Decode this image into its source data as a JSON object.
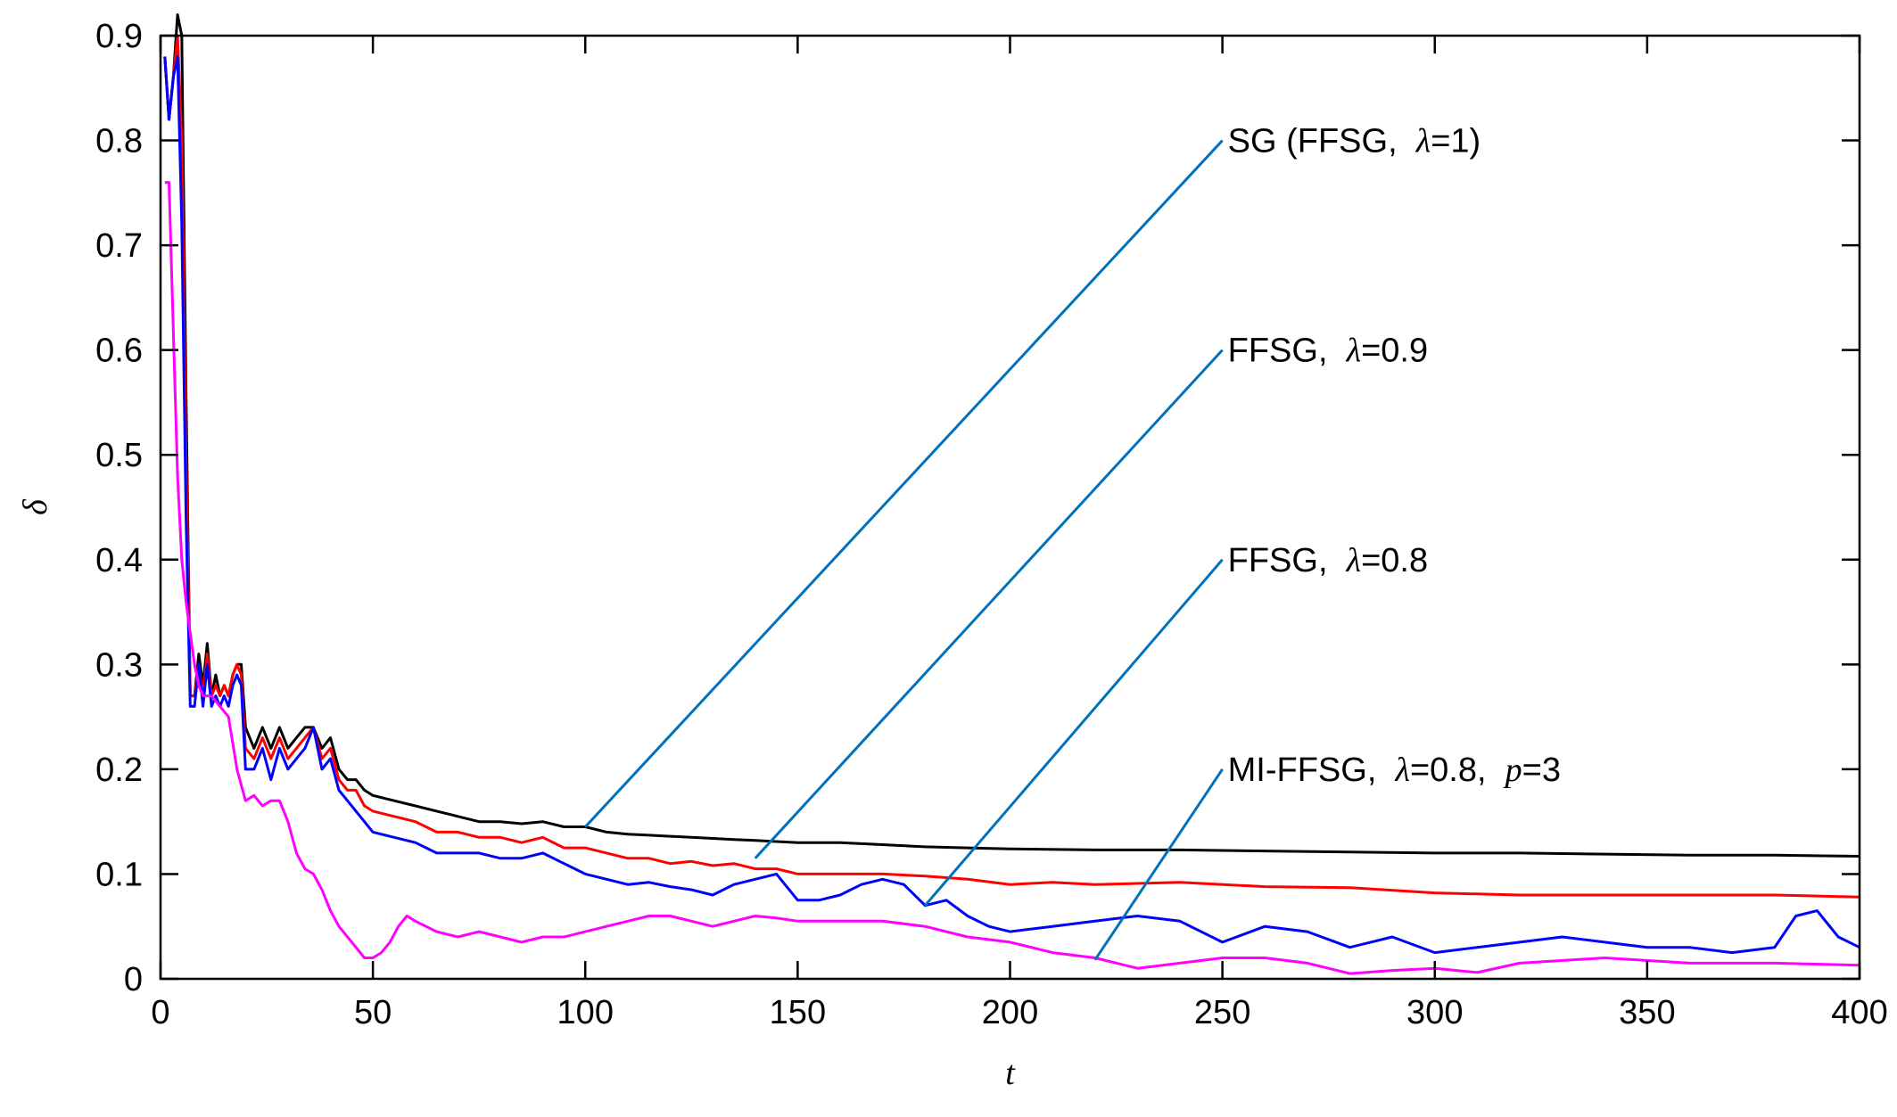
{
  "chart_data": {
    "type": "line",
    "title": "",
    "xlabel": "t",
    "ylabel": "δ",
    "xlim": [
      0,
      400
    ],
    "ylim": [
      0,
      0.9
    ],
    "xticks": [
      0,
      50,
      100,
      150,
      200,
      250,
      300,
      350,
      400
    ],
    "yticks": [
      0,
      0.1,
      0.2,
      0.3,
      0.4,
      0.5,
      0.6,
      0.7,
      0.8,
      0.9
    ],
    "xtick_labels": [
      "0",
      "50",
      "100",
      "150",
      "200",
      "250",
      "300",
      "350",
      "400"
    ],
    "ytick_labels": [
      "0",
      "0.1",
      "0.2",
      "0.3",
      "0.4",
      "0.5",
      "0.6",
      "0.7",
      "0.8",
      "0.9"
    ],
    "grid": false,
    "series": [
      {
        "name": "SG (FFSG, λ=1)",
        "color": "#000000",
        "x": [
          1,
          2,
          3,
          4,
          5,
          6,
          7,
          8,
          9,
          10,
          11,
          12,
          13,
          14,
          15,
          16,
          17,
          18,
          19,
          20,
          22,
          24,
          26,
          28,
          30,
          32,
          34,
          36,
          38,
          40,
          42,
          44,
          46,
          48,
          50,
          55,
          60,
          65,
          70,
          75,
          80,
          85,
          90,
          95,
          100,
          105,
          110,
          115,
          120,
          125,
          130,
          135,
          140,
          145,
          150,
          160,
          170,
          180,
          190,
          200,
          220,
          240,
          260,
          280,
          300,
          320,
          340,
          360,
          380,
          400
        ],
        "y": [
          0.88,
          0.82,
          0.86,
          0.92,
          0.9,
          0.56,
          0.27,
          0.27,
          0.31,
          0.28,
          0.32,
          0.27,
          0.29,
          0.27,
          0.28,
          0.27,
          0.29,
          0.3,
          0.3,
          0.24,
          0.22,
          0.24,
          0.22,
          0.24,
          0.22,
          0.23,
          0.24,
          0.24,
          0.22,
          0.23,
          0.2,
          0.19,
          0.19,
          0.18,
          0.175,
          0.17,
          0.165,
          0.16,
          0.155,
          0.15,
          0.15,
          0.148,
          0.15,
          0.145,
          0.145,
          0.14,
          0.138,
          0.137,
          0.136,
          0.135,
          0.134,
          0.133,
          0.132,
          0.131,
          0.13,
          0.13,
          0.128,
          0.126,
          0.125,
          0.124,
          0.123,
          0.123,
          0.122,
          0.121,
          0.12,
          0.12,
          0.119,
          0.118,
          0.118,
          0.117
        ]
      },
      {
        "name": "FFSG, λ=0.9",
        "color": "#ff0000",
        "x": [
          1,
          2,
          3,
          4,
          5,
          6,
          7,
          8,
          9,
          10,
          11,
          12,
          13,
          14,
          15,
          16,
          17,
          18,
          19,
          20,
          22,
          24,
          26,
          28,
          30,
          32,
          34,
          36,
          38,
          40,
          42,
          44,
          46,
          48,
          50,
          55,
          60,
          65,
          70,
          75,
          80,
          85,
          90,
          95,
          100,
          105,
          110,
          115,
          120,
          125,
          130,
          135,
          140,
          145,
          150,
          160,
          170,
          180,
          190,
          200,
          210,
          220,
          240,
          260,
          280,
          300,
          320,
          340,
          360,
          380,
          400
        ],
        "y": [
          0.88,
          0.82,
          0.86,
          0.9,
          0.8,
          0.5,
          0.27,
          0.27,
          0.3,
          0.27,
          0.31,
          0.27,
          0.28,
          0.27,
          0.28,
          0.27,
          0.29,
          0.3,
          0.29,
          0.22,
          0.21,
          0.23,
          0.21,
          0.23,
          0.21,
          0.22,
          0.23,
          0.24,
          0.21,
          0.22,
          0.19,
          0.18,
          0.18,
          0.165,
          0.16,
          0.155,
          0.15,
          0.14,
          0.14,
          0.135,
          0.135,
          0.13,
          0.135,
          0.125,
          0.125,
          0.12,
          0.115,
          0.115,
          0.11,
          0.112,
          0.108,
          0.11,
          0.105,
          0.105,
          0.1,
          0.1,
          0.1,
          0.098,
          0.095,
          0.09,
          0.092,
          0.09,
          0.092,
          0.088,
          0.087,
          0.082,
          0.08,
          0.08,
          0.08,
          0.08,
          0.078
        ]
      },
      {
        "name": "FFSG, λ=0.8",
        "color": "#0000ff",
        "x": [
          1,
          2,
          3,
          4,
          5,
          6,
          7,
          8,
          9,
          10,
          11,
          12,
          13,
          14,
          15,
          16,
          17,
          18,
          19,
          20,
          22,
          24,
          26,
          28,
          30,
          32,
          34,
          36,
          38,
          40,
          42,
          44,
          46,
          48,
          50,
          55,
          60,
          65,
          70,
          75,
          80,
          85,
          90,
          95,
          100,
          105,
          110,
          115,
          120,
          125,
          130,
          135,
          140,
          145,
          150,
          155,
          160,
          165,
          170,
          175,
          180,
          185,
          190,
          195,
          200,
          210,
          220,
          230,
          240,
          250,
          260,
          270,
          280,
          290,
          300,
          310,
          320,
          330,
          340,
          350,
          360,
          370,
          380,
          385,
          390,
          395,
          400
        ],
        "y": [
          0.88,
          0.82,
          0.86,
          0.88,
          0.72,
          0.44,
          0.26,
          0.26,
          0.3,
          0.26,
          0.3,
          0.26,
          0.27,
          0.26,
          0.27,
          0.26,
          0.28,
          0.29,
          0.28,
          0.2,
          0.2,
          0.22,
          0.19,
          0.22,
          0.2,
          0.21,
          0.22,
          0.24,
          0.2,
          0.21,
          0.18,
          0.17,
          0.16,
          0.15,
          0.14,
          0.135,
          0.13,
          0.12,
          0.12,
          0.12,
          0.115,
          0.115,
          0.12,
          0.11,
          0.1,
          0.095,
          0.09,
          0.092,
          0.088,
          0.085,
          0.08,
          0.09,
          0.095,
          0.1,
          0.075,
          0.075,
          0.08,
          0.09,
          0.095,
          0.09,
          0.07,
          0.075,
          0.06,
          0.05,
          0.045,
          0.05,
          0.055,
          0.06,
          0.055,
          0.035,
          0.05,
          0.045,
          0.03,
          0.04,
          0.025,
          0.03,
          0.035,
          0.04,
          0.035,
          0.03,
          0.03,
          0.025,
          0.03,
          0.06,
          0.065,
          0.04,
          0.03
        ]
      },
      {
        "name": "MI-FFSG, λ=0.8, p=3",
        "color": "#ff00ff",
        "x": [
          1,
          2,
          3,
          4,
          5,
          6,
          7,
          8,
          9,
          10,
          12,
          14,
          16,
          18,
          20,
          22,
          24,
          26,
          28,
          30,
          32,
          34,
          36,
          38,
          40,
          42,
          44,
          46,
          48,
          50,
          52,
          54,
          56,
          58,
          60,
          65,
          70,
          75,
          80,
          85,
          90,
          95,
          100,
          105,
          110,
          115,
          120,
          125,
          130,
          135,
          140,
          145,
          150,
          160,
          170,
          180,
          190,
          200,
          210,
          220,
          230,
          240,
          250,
          260,
          270,
          280,
          290,
          300,
          310,
          320,
          340,
          360,
          380,
          400
        ],
        "y": [
          0.76,
          0.76,
          0.62,
          0.48,
          0.4,
          0.36,
          0.33,
          0.3,
          0.28,
          0.27,
          0.27,
          0.26,
          0.25,
          0.2,
          0.17,
          0.175,
          0.165,
          0.17,
          0.17,
          0.15,
          0.12,
          0.105,
          0.1,
          0.085,
          0.065,
          0.05,
          0.04,
          0.03,
          0.02,
          0.02,
          0.025,
          0.035,
          0.05,
          0.06,
          0.055,
          0.045,
          0.04,
          0.045,
          0.04,
          0.035,
          0.04,
          0.04,
          0.045,
          0.05,
          0.055,
          0.06,
          0.06,
          0.055,
          0.05,
          0.055,
          0.06,
          0.058,
          0.055,
          0.055,
          0.055,
          0.05,
          0.04,
          0.035,
          0.025,
          0.02,
          0.01,
          0.015,
          0.02,
          0.02,
          0.015,
          0.005,
          0.008,
          0.01,
          0.006,
          0.015,
          0.02,
          0.015,
          0.015,
          0.013
        ]
      }
    ],
    "annotations": [
      {
        "prefix": "SG (FFSG,  ",
        "greek": "λ",
        "suffix": "=1)",
        "p_var": "",
        "p_val": "",
        "text_x": 250,
        "text_y": 0.8,
        "point_x": 100,
        "point_y": 0.145,
        "color": "#0072bd"
      },
      {
        "prefix": "FFSG,  ",
        "greek": "λ",
        "suffix": "=0.9",
        "p_var": "",
        "p_val": "",
        "text_x": 250,
        "text_y": 0.6,
        "point_x": 140,
        "point_y": 0.115,
        "color": "#0072bd"
      },
      {
        "prefix": "FFSG,  ",
        "greek": "λ",
        "suffix": "=0.8",
        "p_var": "",
        "p_val": "",
        "text_x": 250,
        "text_y": 0.4,
        "point_x": 180,
        "point_y": 0.07,
        "color": "#0072bd"
      },
      {
        "prefix": "MI-FFSG,  ",
        "greek": "λ",
        "suffix": "=0.8,  ",
        "p_var": "p",
        "p_val": "=3",
        "text_x": 250,
        "text_y": 0.2,
        "point_x": 220,
        "point_y": 0.018,
        "color": "#0072bd"
      }
    ]
  }
}
